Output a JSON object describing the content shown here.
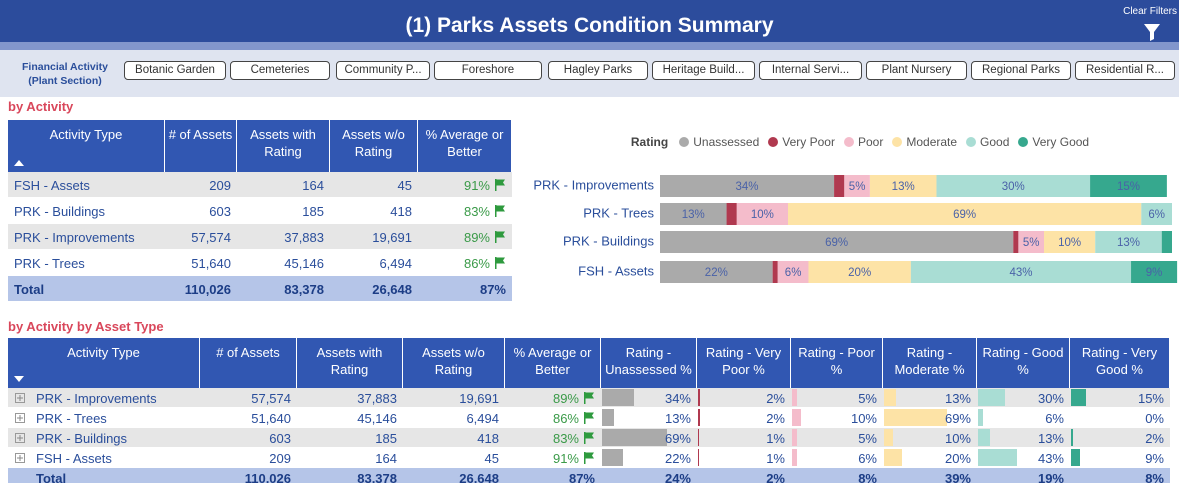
{
  "header": {
    "title": "(1) Parks Assets Condition Summary",
    "clear_filters": "Clear Filters"
  },
  "filter": {
    "label": [
      "Financial Activity",
      "(Plant Section)"
    ],
    "buttons": [
      "Botanic Garden",
      "Cemeteries",
      "Community P...",
      "Foreshore",
      "Hagley Parks",
      "Heritage Build...",
      "Internal Servi...",
      "Plant Nursery",
      "Regional Parks",
      "Residential R..."
    ]
  },
  "section1": {
    "title": "by Activity"
  },
  "table1": {
    "columns": [
      "Activity Type",
      "# of Assets",
      "Assets with Rating",
      "Assets w/o Rating",
      "% Average or Better"
    ],
    "rows": [
      [
        "FSH - Assets",
        "209",
        "164",
        "45",
        "91%"
      ],
      [
        "PRK - Buildings",
        "603",
        "185",
        "418",
        "83%"
      ],
      [
        "PRK - Improvements",
        "57,574",
        "37,883",
        "19,691",
        "89%"
      ],
      [
        "PRK - Trees",
        "51,640",
        "45,146",
        "6,494",
        "86%"
      ],
      [
        "Total",
        "110,026",
        "83,378",
        "26,648",
        "87%"
      ]
    ]
  },
  "chart_data": {
    "type": "bar",
    "orientation": "horizontal",
    "stacked": true,
    "legend_title": "Rating",
    "legend": "top",
    "categories": [
      "PRK - Improvements",
      "PRK - Trees",
      "PRK - Buildings",
      "FSH - Assets"
    ],
    "xlim": [
      0,
      100
    ],
    "series": [
      {
        "name": "Unassessed",
        "color": "#aaaaaa",
        "values": [
          34,
          13,
          69,
          22
        ],
        "value_labels": [
          "34%",
          "13%",
          "69%",
          "22%"
        ]
      },
      {
        "name": "Very Poor",
        "color": "#b0394f",
        "values": [
          2,
          2,
          1,
          1
        ]
      },
      {
        "name": "Poor",
        "color": "#f4bccb",
        "values": [
          5,
          10,
          5,
          6
        ],
        "value_labels": [
          "5%",
          "10%",
          "5%",
          "6%"
        ]
      },
      {
        "name": "Moderate",
        "color": "#fde3a6",
        "values": [
          13,
          69,
          10,
          20
        ],
        "value_labels": [
          "13%",
          "69%",
          "10%",
          "20%"
        ]
      },
      {
        "name": "Good",
        "color": "#a9ddd4",
        "values": [
          30,
          6,
          13,
          43
        ],
        "value_labels": [
          "30%",
          "6%",
          "13%",
          "43%"
        ]
      },
      {
        "name": "Very Good",
        "color": "#36a88e",
        "values": [
          15,
          0,
          2,
          9
        ],
        "value_labels": [
          "15%",
          null,
          null,
          "9%"
        ]
      }
    ]
  },
  "section2": {
    "title": "by Activity by Asset Type"
  },
  "table2": {
    "columns": [
      "Activity Type",
      "# of Assets",
      "Assets with Rating",
      "Assets w/o Rating",
      "% Average or Better",
      "Rating - Unassessed %",
      "Rating - Very Poor %",
      "Rating - Poor %",
      "Rating - Moderate %",
      "Rating - Good %",
      "Rating - Very Good %"
    ],
    "rows": [
      [
        "PRK - Improvements",
        "57,574",
        "37,883",
        "19,691",
        "89%",
        "34%",
        "2%",
        "5%",
        "13%",
        "30%",
        "15%"
      ],
      [
        "PRK - Trees",
        "51,640",
        "45,146",
        "6,494",
        "86%",
        "13%",
        "2%",
        "10%",
        "69%",
        "6%",
        "0%"
      ],
      [
        "PRK - Buildings",
        "603",
        "185",
        "418",
        "83%",
        "69%",
        "1%",
        "5%",
        "10%",
        "13%",
        "2%"
      ],
      [
        "FSH - Assets",
        "209",
        "164",
        "45",
        "91%",
        "22%",
        "1%",
        "6%",
        "20%",
        "43%",
        "9%"
      ],
      [
        "Total",
        "110,026",
        "83,378",
        "26,648",
        "87%",
        "24%",
        "2%",
        "8%",
        "39%",
        "19%",
        "8%"
      ]
    ]
  }
}
